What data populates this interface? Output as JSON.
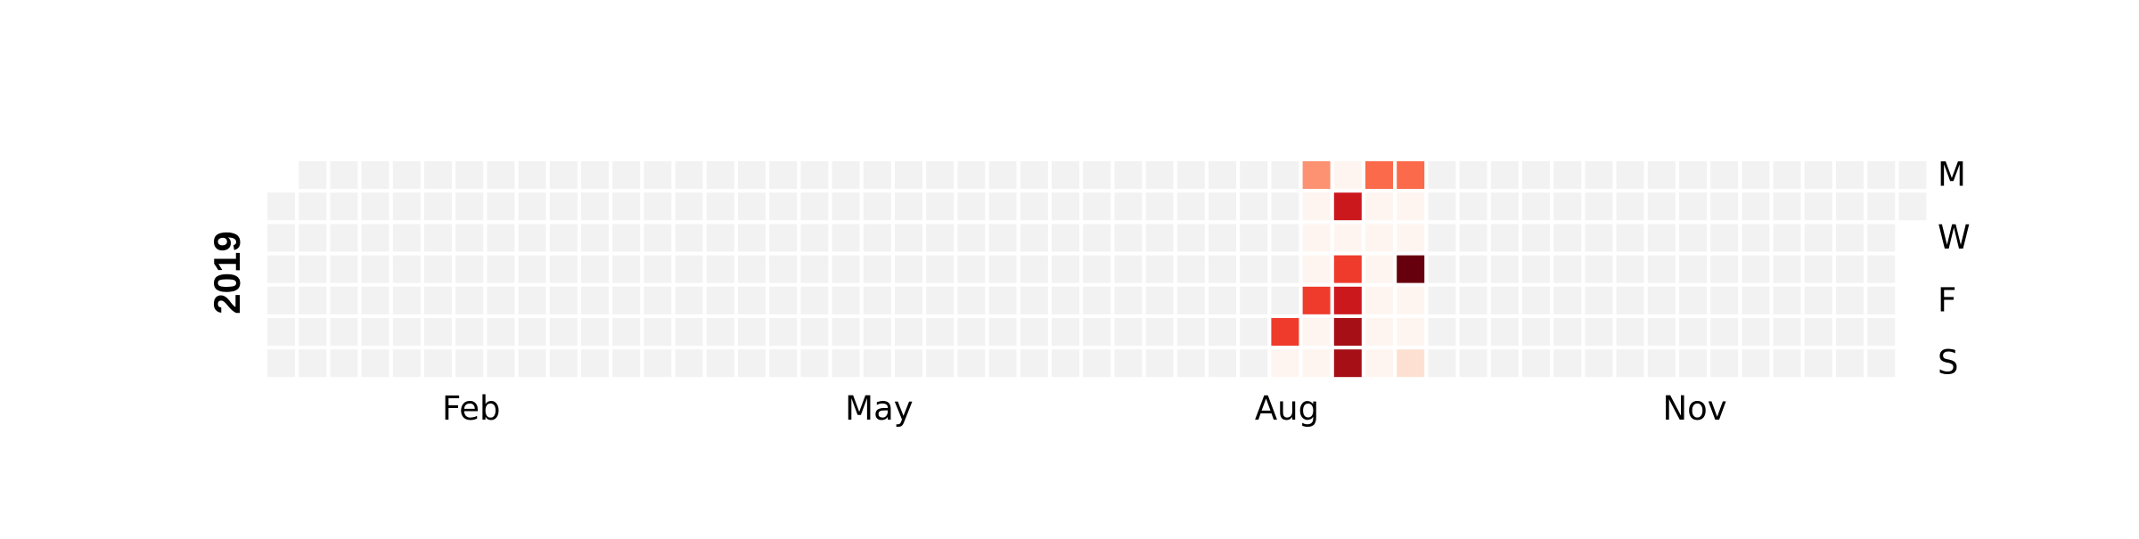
{
  "chart_data": {
    "type": "heatmap",
    "title": "",
    "year": "2019",
    "colors": {
      "empty": "#f2f2f2",
      "scale": [
        "#fff5f0",
        "#fee0d2",
        "#fcbba1",
        "#fc9272",
        "#fb6a4a",
        "#ef3b2c",
        "#cb181d",
        "#a50f15",
        "#67000d"
      ]
    },
    "ylabels": [
      "M",
      "W",
      "F",
      "S"
    ],
    "xlabels": [
      {
        "label": "Feb",
        "week": 6.5
      },
      {
        "label": "May",
        "week": 19.5
      },
      {
        "label": "Aug",
        "week": 32.5
      },
      {
        "label": "Nov",
        "week": 45.5
      }
    ],
    "num_weeks": 53,
    "first_weekday": 1,
    "last_weekday": 1,
    "value_max": 1.0,
    "cells": [
      {
        "week": 32,
        "day": 5,
        "value": 0.65
      },
      {
        "week": 32,
        "day": 6,
        "value": 0.03
      },
      {
        "week": 33,
        "day": 0,
        "value": 0.35
      },
      {
        "week": 33,
        "day": 1,
        "value": 0.03
      },
      {
        "week": 33,
        "day": 2,
        "value": 0.03
      },
      {
        "week": 33,
        "day": 3,
        "value": 0.05
      },
      {
        "week": 33,
        "day": 4,
        "value": 0.68
      },
      {
        "week": 33,
        "day": 5,
        "value": 0.05
      },
      {
        "week": 33,
        "day": 6,
        "value": 0.03
      },
      {
        "week": 34,
        "day": 0,
        "value": 0.03
      },
      {
        "week": 34,
        "day": 1,
        "value": 0.75
      },
      {
        "week": 34,
        "day": 2,
        "value": 0.03
      },
      {
        "week": 34,
        "day": 3,
        "value": 0.6
      },
      {
        "week": 34,
        "day": 4,
        "value": 0.75
      },
      {
        "week": 34,
        "day": 5,
        "value": 0.85
      },
      {
        "week": 34,
        "day": 6,
        "value": 0.92
      },
      {
        "week": 35,
        "day": 0,
        "value": 0.55
      },
      {
        "week": 35,
        "day": 1,
        "value": 0.03
      },
      {
        "week": 35,
        "day": 2,
        "value": 0.03
      },
      {
        "week": 35,
        "day": 3,
        "value": 0.03
      },
      {
        "week": 35,
        "day": 4,
        "value": 0.03
      },
      {
        "week": 35,
        "day": 5,
        "value": 0.03
      },
      {
        "week": 35,
        "day": 6,
        "value": 0.03
      },
      {
        "week": 36,
        "day": 0,
        "value": 0.45
      },
      {
        "week": 36,
        "day": 1,
        "value": 0.03
      },
      {
        "week": 36,
        "day": 2,
        "value": 0.03
      },
      {
        "week": 36,
        "day": 3,
        "value": 1.0
      },
      {
        "week": 36,
        "day": 4,
        "value": 0.03
      },
      {
        "week": 36,
        "day": 5,
        "value": 0.03
      },
      {
        "week": 36,
        "day": 6,
        "value": 0.12
      }
    ]
  }
}
